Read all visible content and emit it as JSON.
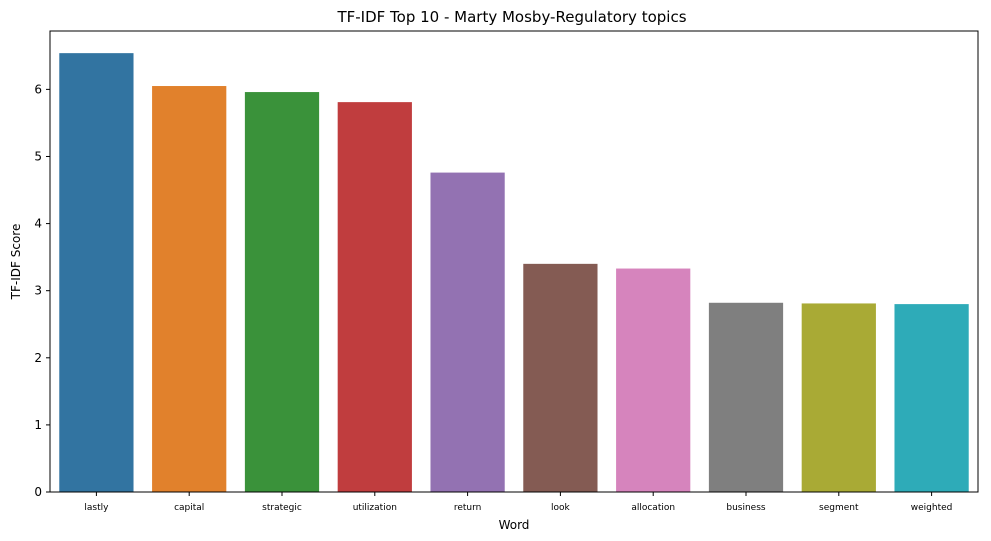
{
  "chart_data": {
    "type": "bar",
    "title": "TF-IDF Top 10 - Marty Mosby-Regulatory topics",
    "xlabel": "Word",
    "ylabel": "TF-IDF Score",
    "categories": [
      "lastly",
      "capital",
      "strategic",
      "utilization",
      "return",
      "look",
      "allocation",
      "business",
      "segment",
      "weighted"
    ],
    "values": [
      6.54,
      6.05,
      5.96,
      5.81,
      4.76,
      3.4,
      3.33,
      2.82,
      2.81,
      2.8
    ],
    "colors": [
      "#3274a1",
      "#e1812c",
      "#3a923a",
      "#c03d3e",
      "#9372b2",
      "#845b53",
      "#d684bd",
      "#7f7f7f",
      "#a9aa35",
      "#2eabb8"
    ],
    "ylim": [
      0,
      6.87
    ],
    "yticks": [
      0,
      1,
      2,
      3,
      4,
      5,
      6
    ],
    "grid": false,
    "legend": "none"
  }
}
